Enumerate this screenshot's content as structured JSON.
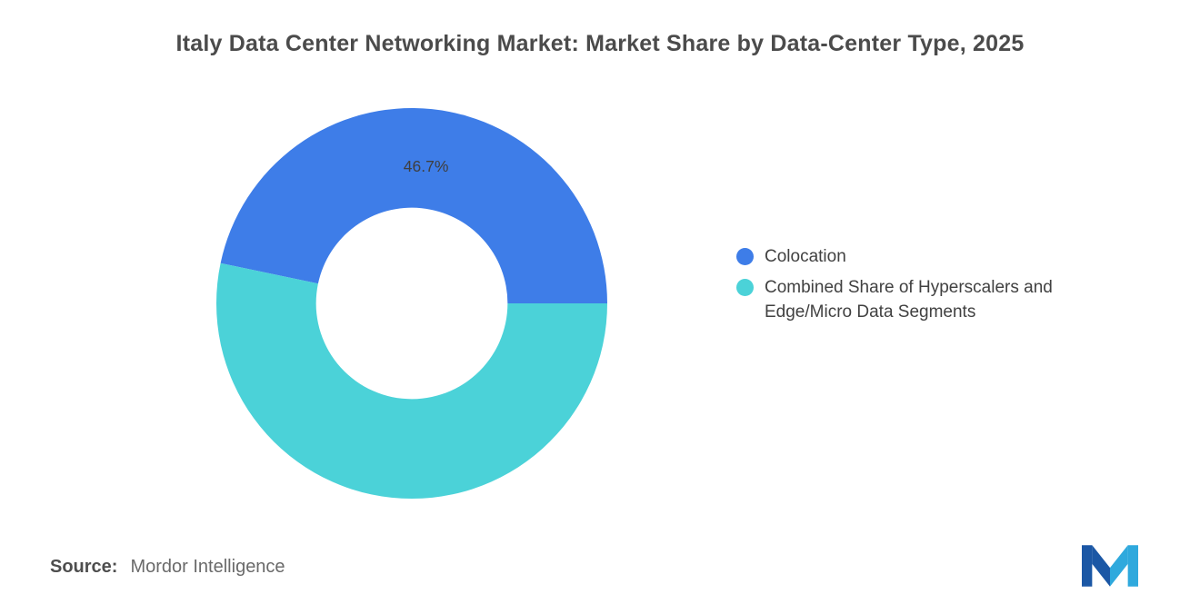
{
  "page": {
    "title": "Italy Data Center Networking Market: Market Share by Data-Center Type, 2025",
    "source_label": "Source:",
    "source_value": "Mordor Intelligence"
  },
  "chart_data": {
    "type": "pie",
    "style": "donut",
    "title": "Italy Data Center Networking Market: Market Share by Data-Center Type, 2025",
    "start_angle_deg": 0,
    "direction": "counterclockwise",
    "inner_radius_ratio": 0.49,
    "legend_position": "right",
    "grid": false,
    "slices": [
      {
        "label": "Colocation",
        "value": 46.7,
        "display_label": "46.7%",
        "color": "#3e7de8"
      },
      {
        "label": "Combined Share of Hyperscalers and Edge/Micro Data Segments",
        "value": 53.3,
        "display_label": "",
        "color": "#4bd2d8"
      }
    ],
    "value_label_color": "#3f3f3f",
    "legend_text_color": "#414141"
  },
  "logo": {
    "icon": "mordor-intelligence-m-logo",
    "color_dark": "#1b57a5",
    "color_light": "#2fa9dd"
  }
}
